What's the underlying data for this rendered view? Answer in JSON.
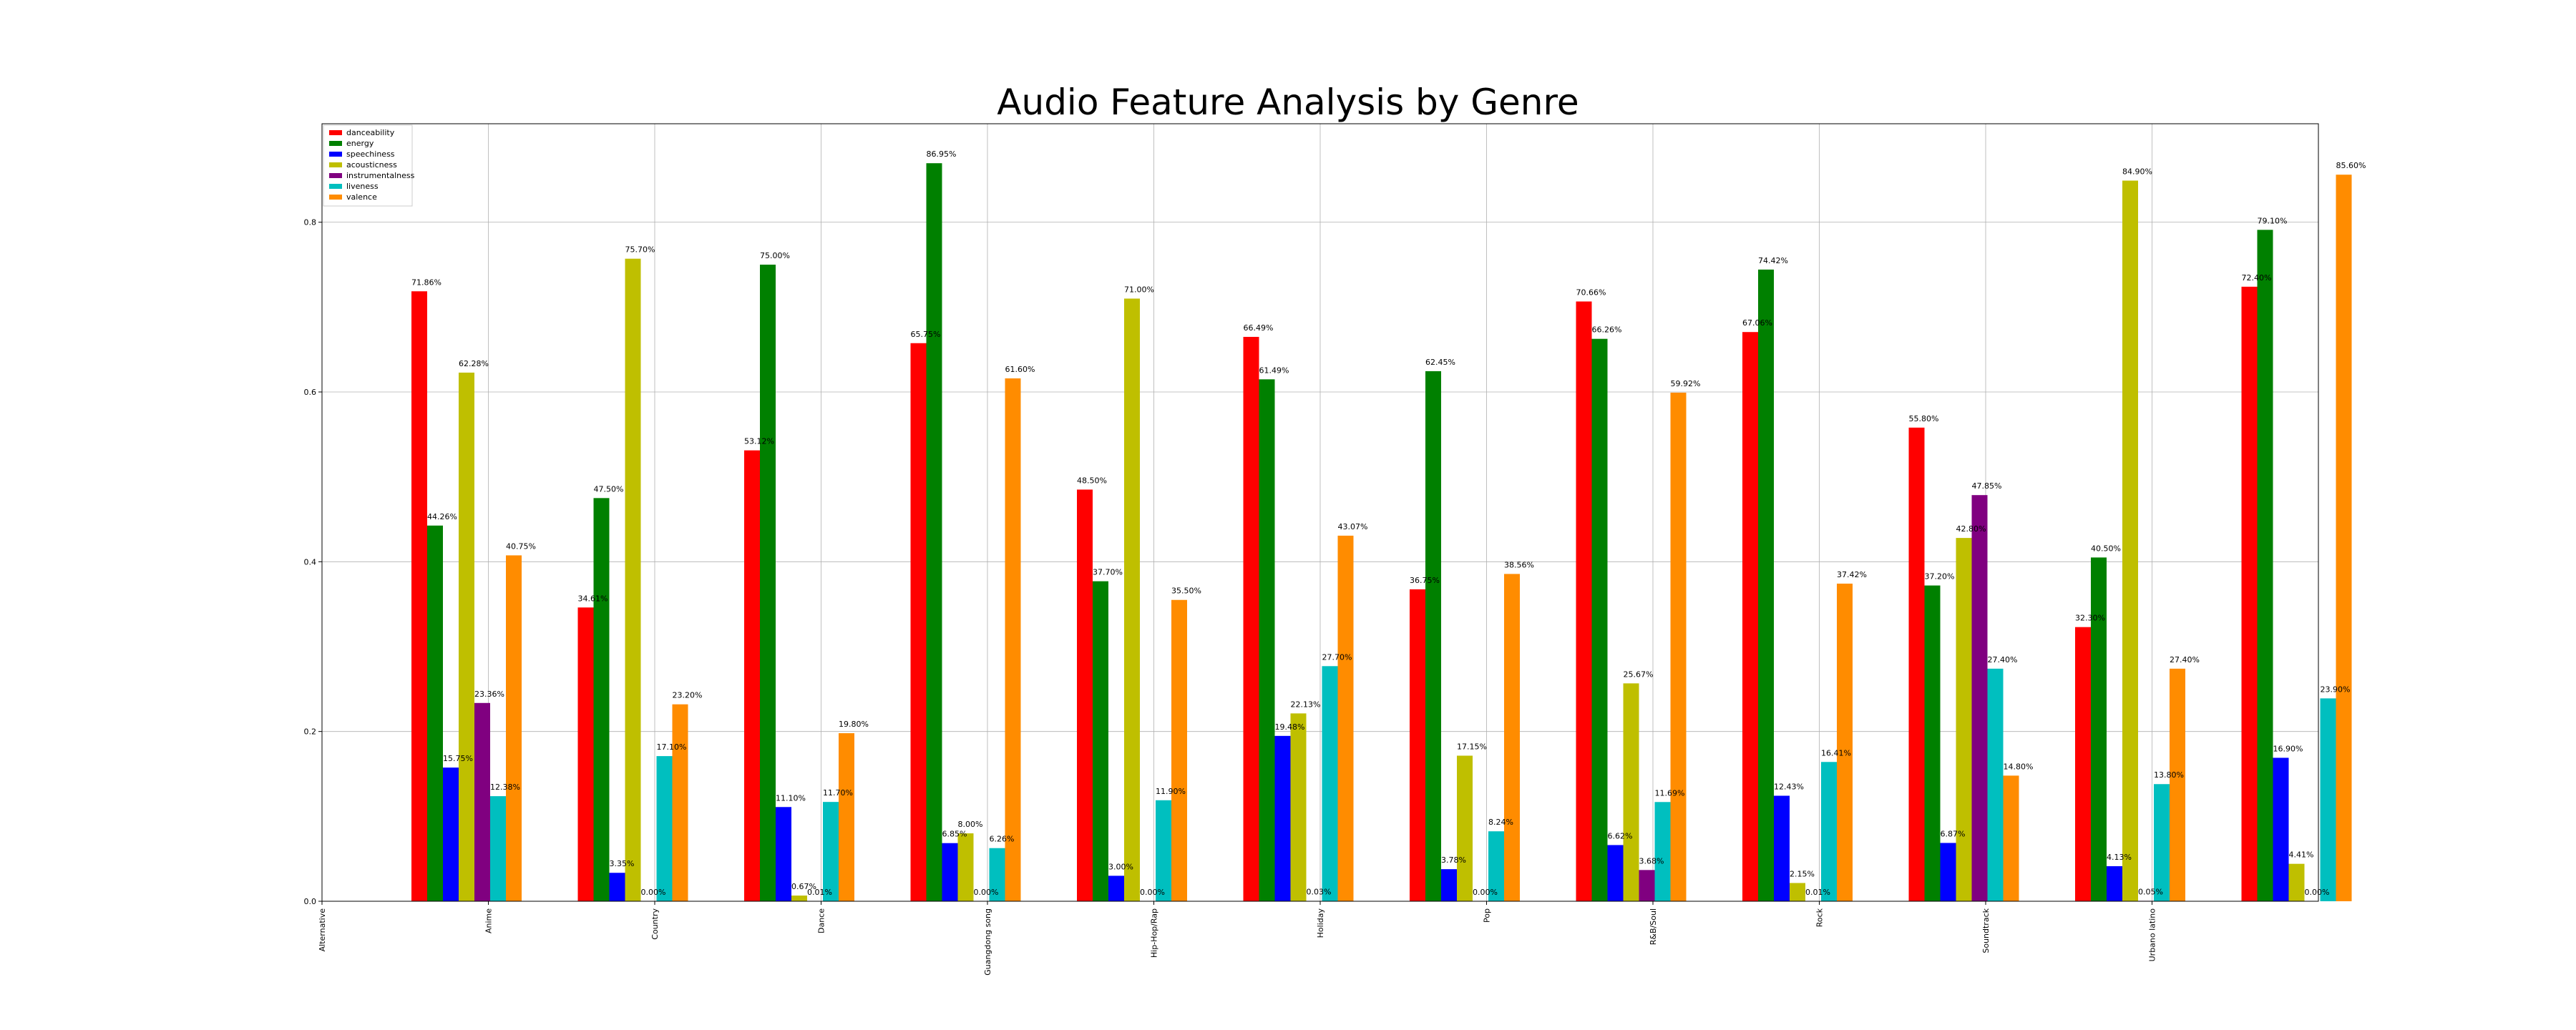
{
  "chart_data": {
    "type": "bar",
    "title": "Audio Feature Analysis by Genre",
    "xlabel": "",
    "ylabel": "",
    "ylim": [
      0,
      0.916
    ],
    "yticks": [
      0.0,
      0.2,
      0.4,
      0.6,
      0.8
    ],
    "ytick_labels": [
      "0.0",
      "0.2",
      "0.4",
      "0.6",
      "0.8"
    ],
    "grid": true,
    "legend_position": "top-left",
    "categories": [
      "Alternative",
      "Anime",
      "Country",
      "Dance",
      "Guangdong song",
      "Hip-Hop/Rap",
      "Holiday",
      "Pop",
      "R&B/Soul",
      "Rock",
      "Soundtrack",
      "Urbano latino"
    ],
    "series": [
      {
        "name": "danceability",
        "color": "#ff0000",
        "values": [
          0.7186,
          0.3461,
          0.5312,
          0.6575,
          0.485,
          0.6649,
          0.3675,
          0.7066,
          0.6706,
          0.558,
          0.323,
          0.724
        ],
        "labels": [
          "71.86%",
          "34.61%",
          "53.12%",
          "65.75%",
          "48.50%",
          "66.49%",
          "36.75%",
          "70.66%",
          "67.06%",
          "55.80%",
          "32.30%",
          "72.40%"
        ]
      },
      {
        "name": "energy",
        "color": "#008000",
        "values": [
          0.4426,
          0.475,
          0.75,
          0.8695,
          0.377,
          0.6149,
          0.6245,
          0.6626,
          0.7442,
          0.372,
          0.405,
          0.791
        ],
        "labels": [
          "44.26%",
          "47.50%",
          "75.00%",
          "86.95%",
          "37.70%",
          "61.49%",
          "62.45%",
          "66.26%",
          "74.42%",
          "37.20%",
          "40.50%",
          "79.10%"
        ]
      },
      {
        "name": "speechiness",
        "color": "#0000ff",
        "values": [
          0.1575,
          0.0335,
          0.111,
          0.0685,
          0.03,
          0.1948,
          0.0378,
          0.0662,
          0.1243,
          0.0687,
          0.0413,
          0.169
        ],
        "labels": [
          "15.75%",
          "3.35%",
          "11.10%",
          "6.85%",
          "3.00%",
          "19.48%",
          "3.78%",
          "6.62%",
          "12.43%",
          "6.87%",
          "4.13%",
          "16.90%"
        ]
      },
      {
        "name": "acousticness",
        "color": "#bfbf00",
        "values": [
          0.6228,
          0.757,
          0.0067,
          0.08,
          0.71,
          0.2213,
          0.1715,
          0.2567,
          0.0215,
          0.428,
          0.849,
          0.0441
        ],
        "labels": [
          "62.28%",
          "75.70%",
          "0.67%",
          "8.00%",
          "71.00%",
          "22.13%",
          "17.15%",
          "25.67%",
          "2.15%",
          "42.80%",
          "84.90%",
          "4.41%"
        ]
      },
      {
        "name": "instrumentalness",
        "color": "#800080",
        "values": [
          0.2336,
          0.0,
          0.0001,
          0.0,
          0.0,
          0.0003,
          0.0,
          0.0368,
          0.0001,
          0.4785,
          0.0005,
          0.0
        ],
        "labels": [
          "23.36%",
          "0.00%",
          "0.01%",
          "0.00%",
          "0.00%",
          "0.03%",
          "0.00%",
          "3.68%",
          "0.01%",
          "47.85%",
          "0.05%",
          "0.00%"
        ]
      },
      {
        "name": "liveness",
        "color": "#00bfbf",
        "values": [
          0.1238,
          0.171,
          0.117,
          0.0626,
          0.119,
          0.277,
          0.0824,
          0.1169,
          0.1641,
          0.274,
          0.138,
          0.239
        ],
        "labels": [
          "12.38%",
          "17.10%",
          "11.70%",
          "6.26%",
          "11.90%",
          "27.70%",
          "8.24%",
          "11.69%",
          "16.41%",
          "27.40%",
          "13.80%",
          "23.90%"
        ]
      },
      {
        "name": "valence",
        "color": "#ff8c00",
        "values": [
          0.4075,
          0.232,
          0.198,
          0.616,
          0.355,
          0.4307,
          0.3856,
          0.5992,
          0.3742,
          0.148,
          0.274,
          0.856
        ],
        "labels": [
          "40.75%",
          "23.20%",
          "19.80%",
          "61.60%",
          "35.50%",
          "43.07%",
          "38.56%",
          "59.92%",
          "37.42%",
          "14.80%",
          "27.40%",
          "85.60%"
        ]
      }
    ]
  }
}
